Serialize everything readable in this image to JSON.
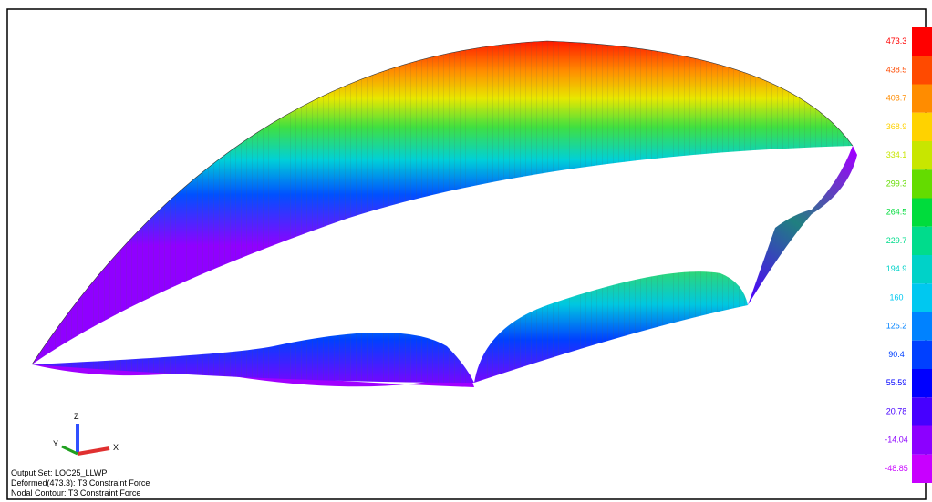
{
  "legend": {
    "items": [
      {
        "label": "473.3",
        "color": "#ff0000"
      },
      {
        "label": "438.5",
        "color": "#ff4a00"
      },
      {
        "label": "403.7",
        "color": "#ff8c00"
      },
      {
        "label": "368.9",
        "color": "#ffd200"
      },
      {
        "label": "334.1",
        "color": "#c8e600"
      },
      {
        "label": "299.3",
        "color": "#64dc00"
      },
      {
        "label": "264.5",
        "color": "#00dc3c"
      },
      {
        "label": "229.7",
        "color": "#00dc8c"
      },
      {
        "label": "194.9",
        "color": "#00d2c8"
      },
      {
        "label": "160",
        "color": "#00c8f0"
      },
      {
        "label": "125.2",
        "color": "#0082ff"
      },
      {
        "label": "90.4",
        "color": "#0040ff"
      },
      {
        "label": "55.59",
        "color": "#0000ff"
      },
      {
        "label": "20.78",
        "color": "#4600ff"
      },
      {
        "label": "-14.04",
        "color": "#8c00ff"
      },
      {
        "label": "-48.85",
        "color": "#c800ff"
      }
    ]
  },
  "triad": {
    "z": "Z",
    "y": "Y",
    "x": "X"
  },
  "info": [
    "Output Set: LOC25_LLWP",
    "Deformed(473.3): T3 Constraint Force",
    "Nodal Contour: T3 Constraint Force"
  ]
}
